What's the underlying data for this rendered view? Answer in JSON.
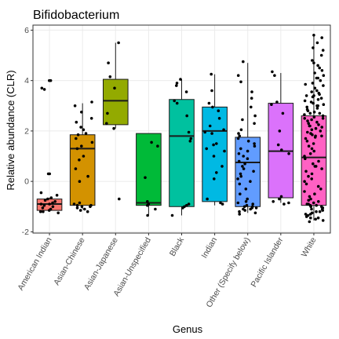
{
  "chart_data": {
    "type": "boxplot",
    "title": "Bifidobacterium",
    "xlabel": "Genus",
    "ylabel": "Relative abundance (CLR)",
    "ylim": [
      -2.05,
      6.2
    ],
    "yticks": [
      -2,
      0,
      2,
      4,
      6
    ],
    "grid": true,
    "legend": "none",
    "categories": [
      "American Indian",
      "Asian-Chinese",
      "Asian-Japanese",
      "Asian-Unspecified",
      "Black",
      "Indian",
      "Other (Specify below)",
      "Pacific Islander",
      "White"
    ],
    "boxes": [
      {
        "category": "American Indian",
        "color": "#F8766D",
        "whisker_low": -1.2,
        "q1": -1.15,
        "median": -0.9,
        "q3": -0.7,
        "whisker_high": -0.65
      },
      {
        "category": "Asian-Chinese",
        "color": "#D39200",
        "whisker_low": -1.1,
        "q1": -0.95,
        "median": 1.3,
        "q3": 1.85,
        "whisker_high": 3.1
      },
      {
        "category": "Asian-Japanese",
        "color": "#93AA00",
        "whisker_low": 2.1,
        "q1": 2.25,
        "median": 3.2,
        "q3": 4.05,
        "whisker_high": 5.5
      },
      {
        "category": "Asian-Unspecified",
        "color": "#00BA38",
        "whisker_low": -1.35,
        "q1": -0.95,
        "median": -0.85,
        "q3": 1.9,
        "whisker_high": 1.9
      },
      {
        "category": "Black",
        "color": "#00C19F",
        "whisker_low": -1.35,
        "q1": -1.0,
        "median": 1.8,
        "q3": 3.25,
        "whisker_high": 4.05
      },
      {
        "category": "Indian",
        "color": "#00B9E3",
        "whisker_low": -0.95,
        "q1": -0.8,
        "median": 2.0,
        "q3": 2.95,
        "whisker_high": 4.25
      },
      {
        "category": "Other (Specify below)",
        "color": "#619CFF",
        "whisker_low": -1.25,
        "q1": -1.0,
        "median": 0.75,
        "q3": 1.75,
        "whisker_high": 4.7
      },
      {
        "category": "Pacific Islander",
        "color": "#DB72FB",
        "whisker_low": -0.85,
        "q1": -0.65,
        "median": 1.2,
        "q3": 3.1,
        "whisker_high": 4.3
      },
      {
        "category": "White",
        "color": "#FF61C3",
        "whisker_low": -1.55,
        "q1": -0.95,
        "median": 0.95,
        "q3": 2.6,
        "whisker_high": 5.8
      }
    ],
    "points": [
      {
        "category": "American Indian",
        "y": [
          4.0,
          4.0,
          3.7,
          3.65,
          0.3,
          0.3,
          -0.45,
          -0.55,
          -0.65,
          -0.7,
          -0.75,
          -0.8,
          -0.85,
          -0.9,
          -0.9,
          -0.95,
          -1.0,
          -1.05,
          -1.1,
          -1.15,
          -1.2,
          -1.2,
          -1.25
        ]
      },
      {
        "category": "Asian-Chinese",
        "y": [
          3.15,
          3.0,
          2.75,
          2.5,
          2.35,
          2.15,
          2.05,
          1.9,
          1.85,
          1.7,
          1.55,
          1.4,
          1.3,
          1.0,
          0.85,
          0.5,
          0.2,
          0.0,
          -0.85,
          -0.9,
          -0.95,
          -0.95,
          -1.0,
          -1.0,
          -1.05,
          -1.1,
          -1.15,
          -1.2
        ]
      },
      {
        "category": "Asian-Japanese",
        "y": [
          5.5,
          4.7,
          4.15,
          3.7,
          2.7,
          2.3,
          2.1,
          -0.7
        ]
      },
      {
        "category": "Asian-Unspecified",
        "y": [
          1.55,
          1.4,
          0.15,
          -0.8,
          -0.9,
          -0.95,
          -1.1,
          -1.35
        ]
      },
      {
        "category": "Black",
        "y": [
          4.05,
          3.9,
          3.8,
          3.55,
          3.2,
          3.1,
          2.6,
          1.95,
          1.7,
          1.6,
          -0.9,
          -0.95,
          -1.0,
          -1.05,
          -1.35
        ]
      },
      {
        "category": "Indian",
        "y": [
          4.25,
          3.6,
          3.1,
          2.95,
          2.8,
          2.5,
          2.2,
          2.05,
          1.95,
          1.9,
          1.5,
          1.45,
          1.3,
          1.2,
          1.0,
          0.6,
          0.35,
          0.1,
          -0.7,
          -0.85,
          -0.9
        ]
      },
      {
        "category": "Other (Specify below)",
        "y": [
          4.75,
          4.2,
          3.95,
          3.55,
          3.3,
          2.95,
          2.6,
          2.45,
          2.3,
          2.05,
          1.9,
          1.8,
          1.7,
          1.6,
          1.5,
          1.4,
          1.3,
          1.2,
          1.1,
          1.0,
          0.9,
          0.8,
          0.7,
          0.6,
          0.5,
          0.4,
          0.3,
          0.2,
          0.1,
          0.0,
          -0.1,
          -0.3,
          -0.5,
          -0.7,
          -0.8,
          -0.85,
          -0.9,
          -0.95,
          -1.0,
          -1.0,
          -1.05,
          -1.05,
          -1.1,
          -1.1,
          -1.15,
          -1.2,
          -1.25,
          -1.3
        ]
      },
      {
        "category": "Pacific Islander",
        "y": [
          4.35,
          4.2,
          3.15,
          3.05,
          2.7,
          2.0,
          1.45,
          1.25,
          1.1,
          -0.6,
          -0.7,
          -0.8,
          -0.85,
          -0.9
        ]
      },
      {
        "category": "White",
        "y": [
          5.8,
          5.7,
          5.5,
          5.3,
          5.2,
          5.0,
          4.8,
          4.7,
          4.6,
          4.5,
          4.4,
          4.3,
          4.2,
          4.1,
          4.0,
          3.9,
          3.85,
          3.8,
          3.7,
          3.6,
          3.55,
          3.5,
          3.45,
          3.4,
          3.35,
          3.3,
          3.25,
          3.2,
          3.15,
          3.1,
          3.05,
          3.0,
          2.95,
          2.9,
          2.85,
          2.8,
          2.75,
          2.7,
          2.65,
          2.6,
          2.55,
          2.5,
          2.45,
          2.4,
          2.35,
          2.3,
          2.25,
          2.2,
          2.15,
          2.1,
          2.05,
          2.0,
          1.95,
          1.9,
          1.85,
          1.8,
          1.75,
          1.7,
          1.6,
          1.5,
          1.4,
          1.3,
          1.2,
          1.1,
          1.0,
          0.9,
          0.8,
          0.7,
          0.6,
          0.5,
          0.4,
          0.3,
          0.2,
          0.1,
          0.0,
          -0.1,
          -0.2,
          -0.3,
          -0.4,
          -0.5,
          -0.6,
          -0.7,
          -0.75,
          -0.8,
          -0.85,
          -0.9,
          -0.95,
          -1.0,
          -1.05,
          -1.1,
          -1.15,
          -1.2,
          -1.25,
          -1.3,
          -1.35,
          -1.4,
          -1.45,
          -1.5,
          -1.55,
          -1.6,
          -1.0,
          -0.95,
          -0.9,
          -1.1,
          -1.2,
          2.7,
          3.0,
          2.2,
          1.8,
          3.4,
          4.1,
          2.5,
          0.6,
          -1.3,
          -1.45
        ]
      }
    ]
  }
}
